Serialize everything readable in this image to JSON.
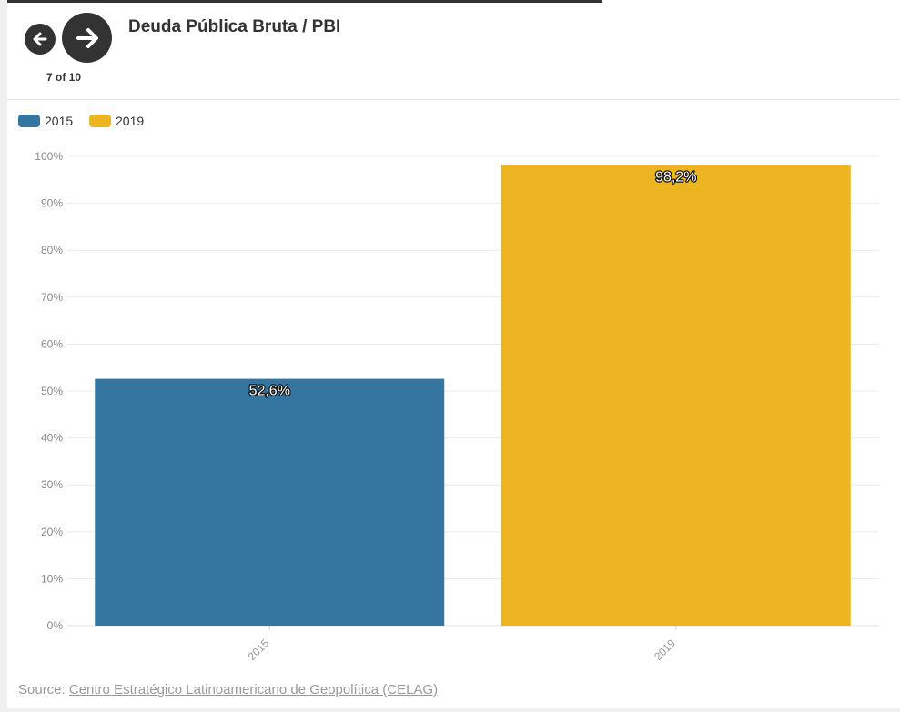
{
  "header": {
    "title": "Deuda Pública Bruta / PBI",
    "page_counter": "7 of 10",
    "prev_icon": "arrow-left-icon",
    "next_icon": "arrow-right-icon"
  },
  "legend": [
    {
      "label": "2015",
      "color": "#3576a1"
    },
    {
      "label": "2019",
      "color": "#edb421"
    }
  ],
  "chart_data": {
    "type": "bar",
    "categories": [
      "2015",
      "2019"
    ],
    "values": [
      52.6,
      98.2
    ],
    "value_labels": [
      "52,6%",
      "98,2%"
    ],
    "colors": [
      "#3576a1",
      "#edb421"
    ],
    "ylim": [
      0,
      100
    ],
    "yticks": [
      "0%",
      "10%",
      "20%",
      "30%",
      "40%",
      "50%",
      "60%",
      "70%",
      "80%",
      "90%",
      "100%"
    ],
    "grid": true,
    "legend_placement": "top-left"
  },
  "footer": {
    "source_prefix": "Source: ",
    "source_link": "Centro Estratégico Latinoamericano de Geopolítica (CELAG)"
  }
}
